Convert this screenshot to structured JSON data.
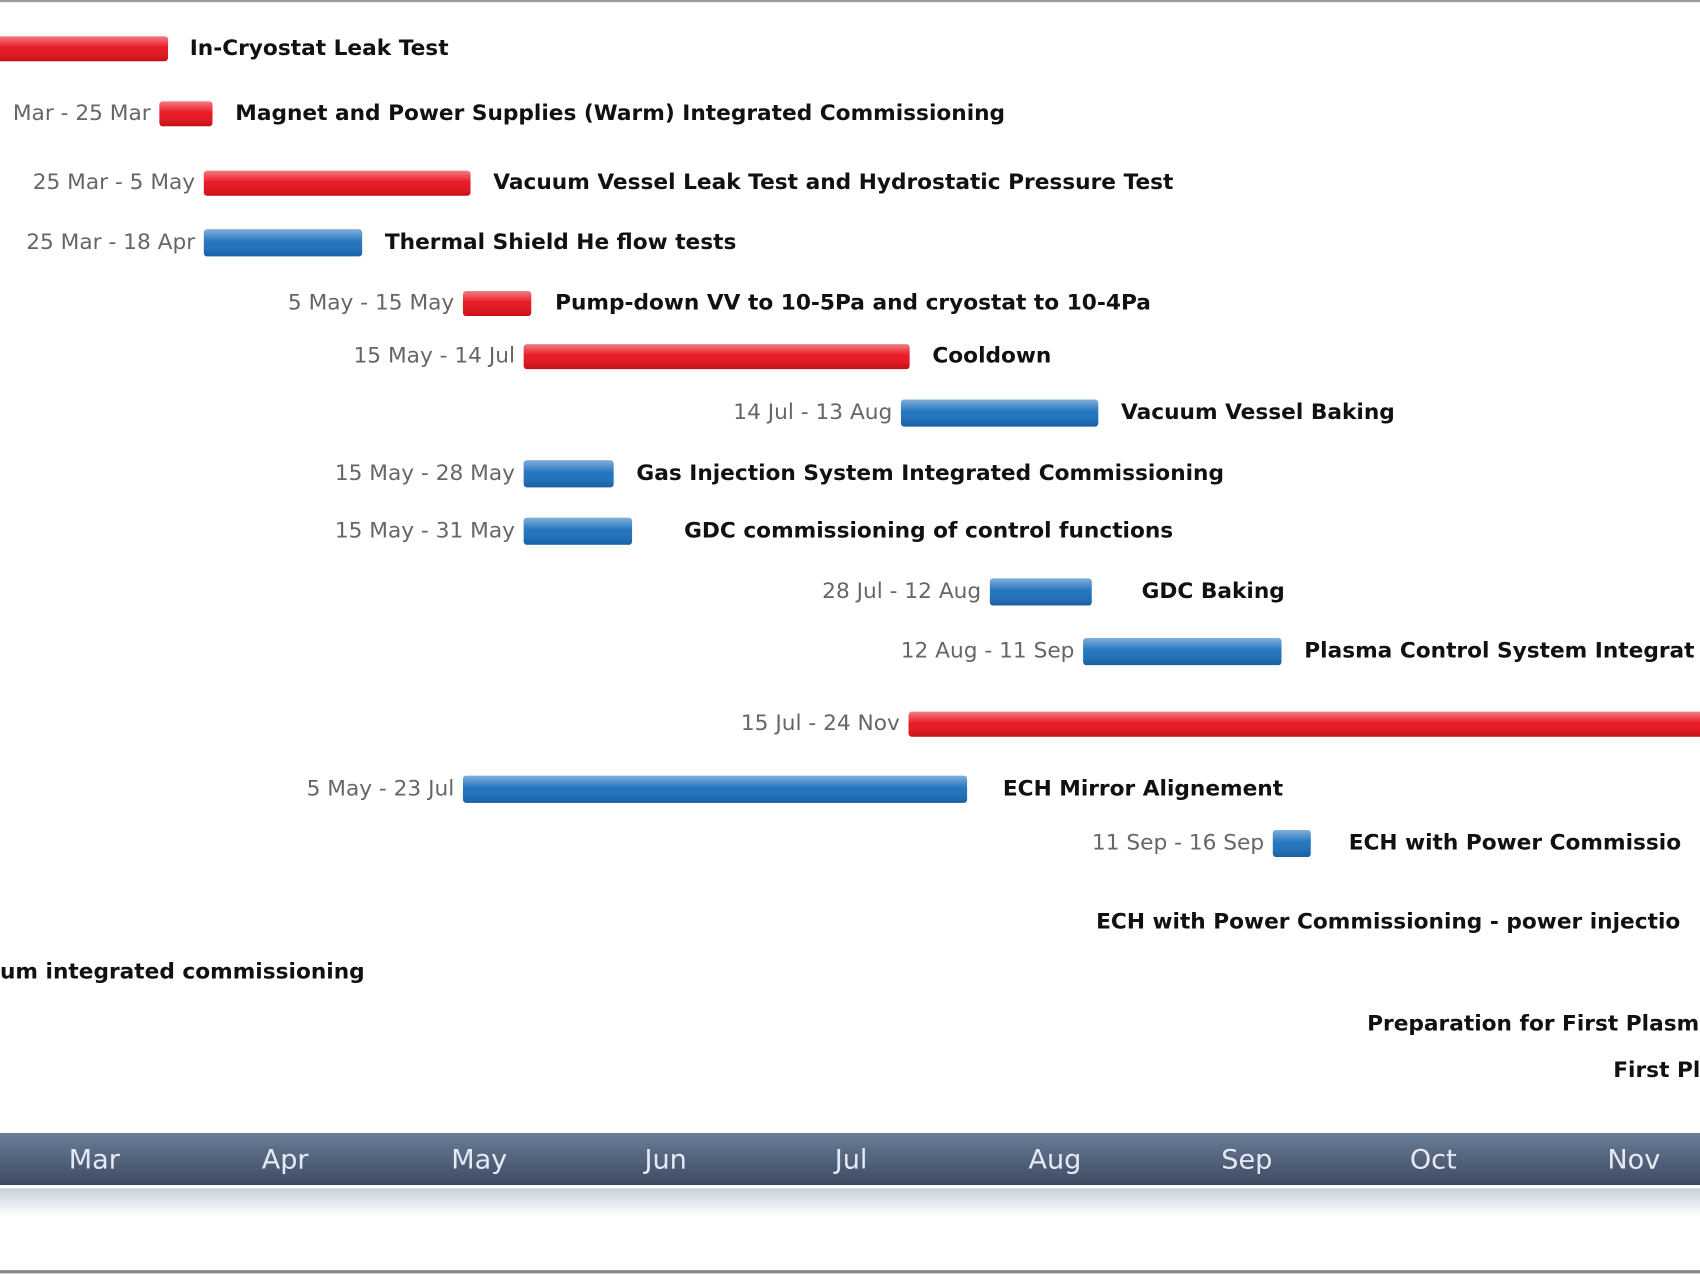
{
  "tasks": [
    {
      "label": "In-Cryostat Leak Test",
      "color": "#e8101a"
    },
    {
      "label": "Magnet and Power Supplies (Warm) Integrated Commissioning",
      "dates": "Mar - 25 Mar",
      "color": "#e8101a"
    },
    {
      "label": "Vacuum Vessel Leak Test and Hydrostatic Pressure Test",
      "dates": "25 Mar - 5 May",
      "color": "#e8101a"
    },
    {
      "label": "Thermal Shield He flow tests",
      "dates": "25 Mar - 18 Apr",
      "color": "#1a6fbd"
    },
    {
      "label": "Pump-down VV to 10-5Pa and cryostat to 10-4Pa",
      "dates": "5 May - 15 May",
      "color": "#e8101a"
    },
    {
      "label": "Cooldown",
      "dates": "15 May - 14 Jul",
      "color": "#e8101a"
    },
    {
      "label": "Vacuum Vessel Baking",
      "dates": "14 Jul - 13 Aug",
      "color": "#1a6fbd"
    },
    {
      "label": "Gas Injection System Integrated Commissioning",
      "dates": "15 May - 28 May",
      "color": "#1a6fbd"
    },
    {
      "label": "GDC commissioning of control functions",
      "dates": "15 May - 31 May",
      "color": "#1a6fbd"
    },
    {
      "label": "GDC Baking",
      "dates": "28 Jul - 12 Aug",
      "color": "#1a6fbd"
    },
    {
      "label": "Plasma Control System Integrat",
      "dates": "12 Aug - 11 Sep",
      "color": "#1a6fbd"
    },
    {
      "dates": "15 Jul - 24 Nov",
      "color": "#e8101a"
    },
    {
      "label": "ECH Mirror Alignement",
      "dates": "5 May - 23 Jul",
      "color": "#1a6fbd"
    },
    {
      "label": "ECH with Power Commissio",
      "dates": "11 Sep - 16 Sep",
      "color": "#1a6fbd"
    },
    {
      "label": "ECH with Power Commissioning - power injectio"
    },
    {
      "label": "um integrated commissioning"
    },
    {
      "label": "Preparation for First Plasm"
    },
    {
      "label": "First Pl"
    }
  ],
  "timeline": {
    "months": [
      "Mar",
      "Apr",
      "May",
      "Jun",
      "Jul",
      "Aug",
      "Sep",
      "Oct",
      "Nov"
    ]
  }
}
